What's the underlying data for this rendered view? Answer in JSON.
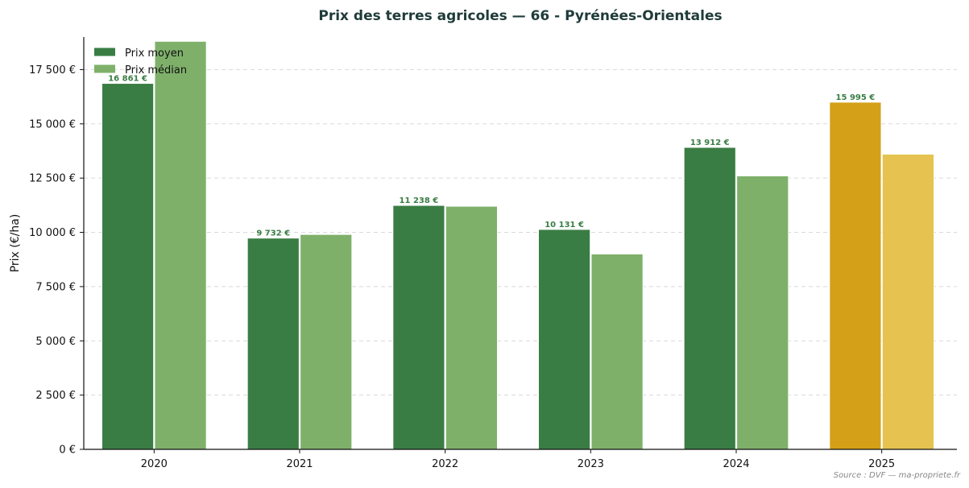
{
  "chart_data": {
    "type": "bar",
    "title": "Prix des terres agricoles — 66 - Pyrénées-Orientales",
    "xlabel": "",
    "ylabel": "Prix (€/ha)",
    "categories": [
      "2020",
      "2021",
      "2022",
      "2023",
      "2024",
      "2025"
    ],
    "ylim": [
      0,
      19000
    ],
    "yticks": [
      0,
      2500,
      5000,
      7500,
      10000,
      12500,
      15000,
      17500
    ],
    "ytick_labels": [
      "0 €",
      "2 500 €",
      "5 000 €",
      "7 500 €",
      "10 000 €",
      "12 500 €",
      "15 000 €",
      "17 500 €"
    ],
    "series": [
      {
        "name": "Prix moyen",
        "values": [
          16861,
          9732,
          11238,
          10131,
          13912,
          15995
        ],
        "data_labels": [
          "16 861 €",
          "9 732 €",
          "11 238 €",
          "10 131 €",
          "13 912 €",
          "15 995 €"
        ],
        "color": "#3a7d44",
        "highlight_color": "#d4a017"
      },
      {
        "name": "Prix médian",
        "values": [
          18800,
          9900,
          11200,
          9000,
          12600,
          13600
        ],
        "color": "#7eb06a",
        "highlight_color": "#e6c350"
      }
    ],
    "highlight_category": "2025",
    "legend_position": "top-left",
    "grid": true,
    "source": "Source : DVF — ma-propriete.fr"
  }
}
